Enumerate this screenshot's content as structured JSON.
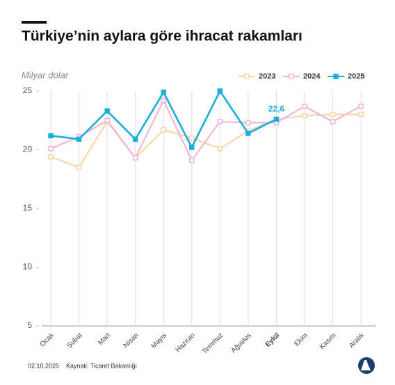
{
  "chart_data": {
    "type": "line",
    "title": "Türkiye’nin aylara göre ihracat rakamları",
    "y_label": "Milyar dolar",
    "categories": [
      "Ocak",
      "Şubat",
      "Mart",
      "Nisan",
      "Mayıs",
      "Haziran",
      "Temmuz",
      "Ağustos",
      "Eylül",
      "Ekim",
      "Kasım",
      "Aralık"
    ],
    "series": [
      {
        "name": "2023",
        "color": "#f8d3a4",
        "values": [
          19.4,
          18.5,
          22.4,
          19.3,
          21.7,
          21.0,
          20.1,
          21.6,
          22.6,
          22.9,
          23.0,
          23.0
        ]
      },
      {
        "name": "2024",
        "color": "#f2b2cf",
        "values": [
          20.1,
          21.1,
          22.5,
          19.3,
          24.2,
          19.1,
          22.4,
          22.3,
          22.3,
          23.7,
          22.4,
          23.7
        ]
      },
      {
        "name": "2025",
        "color": "#1badde",
        "values": [
          21.2,
          20.9,
          23.3,
          20.9,
          24.9,
          20.2,
          25.0,
          21.4,
          22.6,
          null,
          null,
          null
        ],
        "value_labels": [
          null,
          null,
          null,
          null,
          null,
          null,
          null,
          null,
          "22,6",
          null,
          null,
          null
        ]
      }
    ],
    "ylim": [
      5,
      25
    ],
    "yticks": [
      5,
      10,
      15,
      20,
      25
    ],
    "grid": "vertical",
    "legend": "top-right",
    "date": "02.10.2025",
    "source": "Kaynak: Ticaret Bakanlığı"
  }
}
